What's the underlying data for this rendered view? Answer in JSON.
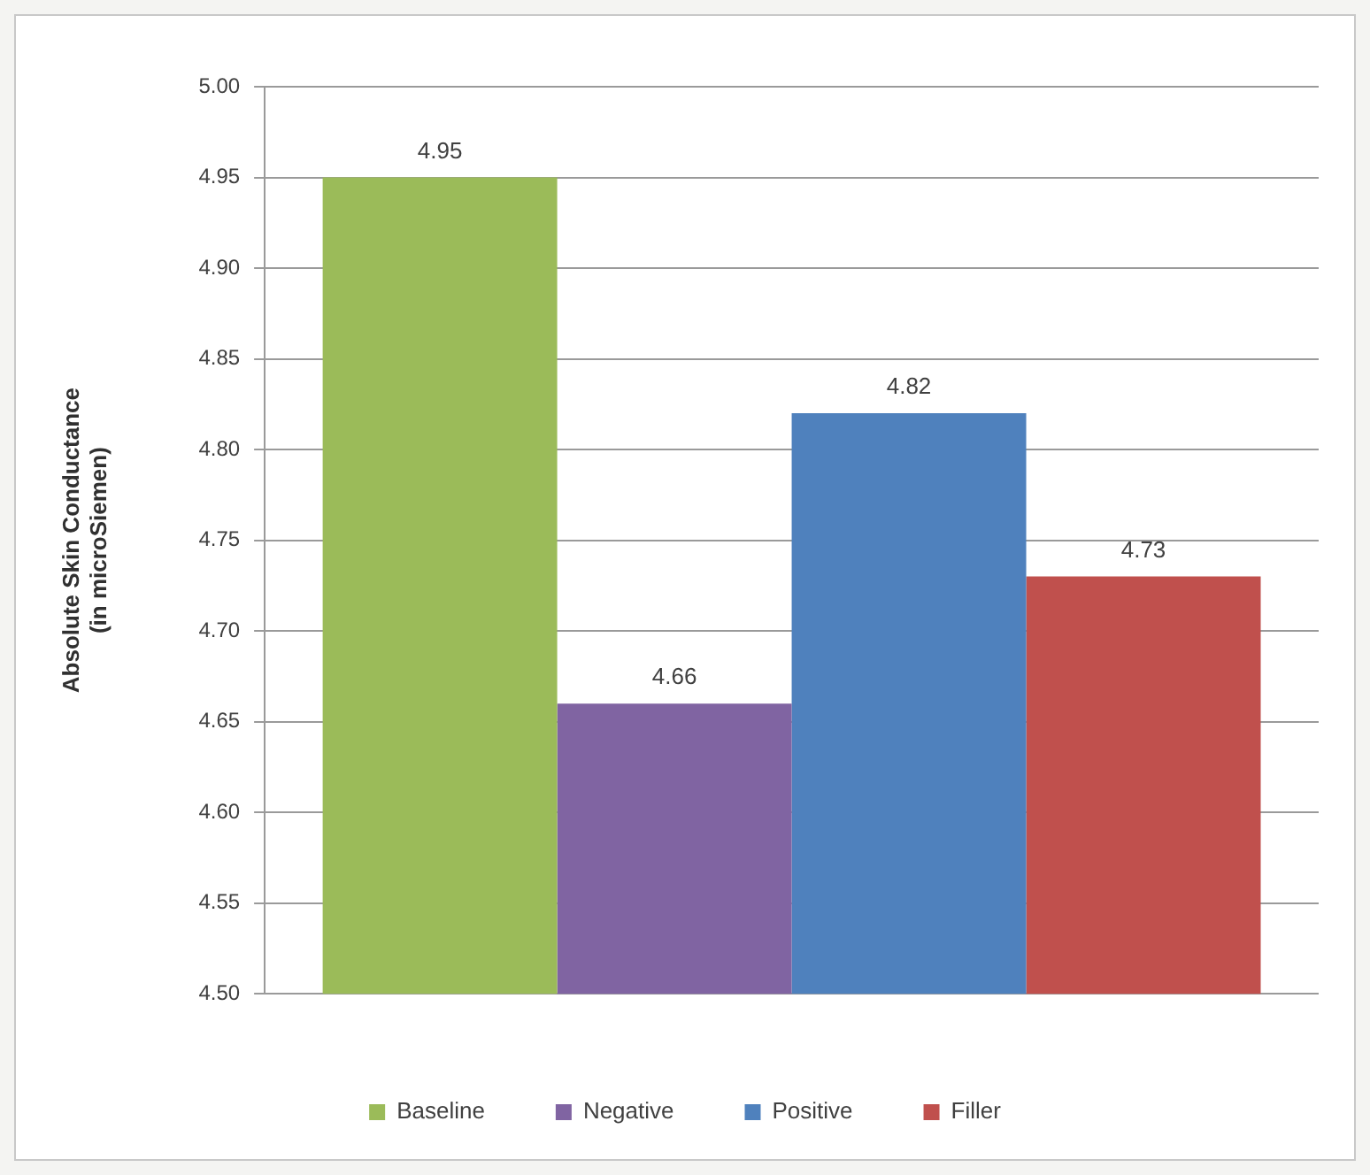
{
  "chart_data": {
    "type": "bar",
    "ylabel": "Absolute Skin Conductance\n(in microSiemen)",
    "categories": [
      null
    ],
    "series": [
      {
        "name": "Baseline",
        "color": "#9bbb59",
        "values": [
          4.95
        ]
      },
      {
        "name": "Negative",
        "color": "#8064a2",
        "values": [
          4.66
        ]
      },
      {
        "name": "Positive",
        "color": "#4f81bd",
        "values": [
          4.82
        ]
      },
      {
        "name": "Filler",
        "color": "#c0504d",
        "values": [
          4.73
        ]
      }
    ],
    "ylim": [
      4.5,
      5.0
    ],
    "yticks": [
      {
        "value": 4.5,
        "label": "4.50"
      },
      {
        "value": 4.55,
        "label": "4.55"
      },
      {
        "value": 4.6,
        "label": "4.60"
      },
      {
        "value": 4.65,
        "label": "4.65"
      },
      {
        "value": 4.7,
        "label": "4.70"
      },
      {
        "value": 4.75,
        "label": "4.75"
      },
      {
        "value": 4.8,
        "label": "4.80"
      },
      {
        "value": 4.85,
        "label": "4.85"
      },
      {
        "value": 4.9,
        "label": "4.90"
      },
      {
        "value": 4.95,
        "label": "4.95"
      },
      {
        "value": 5.0,
        "label": "5.00"
      }
    ],
    "grid": "y",
    "legend": "bottom",
    "data_labels": true
  }
}
